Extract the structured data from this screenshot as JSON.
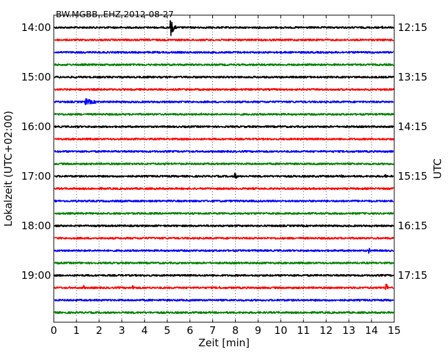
{
  "chart_data": {
    "type": "line",
    "title": "BW.MGBB..EHZ 2012-08-27",
    "xlabel": "Zeit  [min]",
    "ylabel_left": "Lokalzeit (UTC+02:00)",
    "ylabel_right": "UTC",
    "xlim": [
      0,
      15
    ],
    "x_ticks": [
      0,
      1,
      2,
      3,
      4,
      5,
      6,
      7,
      8,
      9,
      10,
      11,
      12,
      13,
      14,
      15
    ],
    "grid": "vertical dotted",
    "left_tick_labels": [
      "14:00",
      "15:00",
      "16:00",
      "17:00",
      "18:00",
      "19:00"
    ],
    "right_tick_labels": [
      "12:15",
      "13:15",
      "14:15",
      "15:15",
      "16:15",
      "17:15"
    ],
    "trace_colors": [
      "#000000",
      "#ff0000",
      "#0000ff",
      "#008000"
    ],
    "traces": [
      {
        "start": "14:00",
        "color": "#000000",
        "events": [
          {
            "t": 5.15,
            "amp": 13,
            "len": 0.25
          },
          {
            "t": 14.5,
            "amp": 3,
            "len": 0.2
          }
        ]
      },
      {
        "start": "14:15",
        "color": "#ff0000",
        "events": []
      },
      {
        "start": "14:30",
        "color": "#0000ff",
        "events": []
      },
      {
        "start": "14:45",
        "color": "#008000",
        "events": []
      },
      {
        "start": "15:00",
        "color": "#000000",
        "events": []
      },
      {
        "start": "15:15",
        "color": "#ff0000",
        "events": [
          {
            "t": 2.1,
            "amp": 2,
            "len": 0.3
          }
        ]
      },
      {
        "start": "15:30",
        "color": "#0000ff",
        "events": [
          {
            "t": 1.4,
            "amp": 5,
            "len": 0.9
          }
        ]
      },
      {
        "start": "15:45",
        "color": "#008000",
        "events": [
          {
            "t": 6.5,
            "amp": 2,
            "len": 0.2
          }
        ]
      },
      {
        "start": "16:00",
        "color": "#000000",
        "events": [
          {
            "t": 1.1,
            "amp": 2,
            "len": 0.3
          },
          {
            "t": 10.0,
            "amp": 2,
            "len": 0.2
          }
        ]
      },
      {
        "start": "16:15",
        "color": "#ff0000",
        "events": [
          {
            "t": 12.9,
            "amp": 2,
            "len": 0.2
          }
        ]
      },
      {
        "start": "16:30",
        "color": "#0000ff",
        "events": []
      },
      {
        "start": "16:45",
        "color": "#008000",
        "events": [
          {
            "t": 4.9,
            "amp": 2,
            "len": 0.3
          }
        ]
      },
      {
        "start": "17:00",
        "color": "#000000",
        "events": [
          {
            "t": 8.0,
            "amp": 5,
            "len": 0.15
          },
          {
            "t": 12.7,
            "amp": 2,
            "len": 0.15
          },
          {
            "t": 14.6,
            "amp": 3,
            "len": 0.15
          }
        ]
      },
      {
        "start": "17:15",
        "color": "#ff0000",
        "events": [
          {
            "t": 2.1,
            "amp": 2,
            "len": 0.2
          }
        ]
      },
      {
        "start": "17:30",
        "color": "#0000ff",
        "events": []
      },
      {
        "start": "17:45",
        "color": "#008000",
        "events": []
      },
      {
        "start": "18:00",
        "color": "#000000",
        "events": []
      },
      {
        "start": "18:15",
        "color": "#ff0000",
        "events": []
      },
      {
        "start": "18:30",
        "color": "#0000ff",
        "events": [
          {
            "t": 13.9,
            "amp": 4,
            "len": 0.1
          }
        ]
      },
      {
        "start": "18:45",
        "color": "#008000",
        "events": [
          {
            "t": 1.1,
            "amp": 2,
            "len": 0.2
          }
        ]
      },
      {
        "start": "19:00",
        "color": "#000000",
        "events": []
      },
      {
        "start": "19:15",
        "color": "#ff0000",
        "events": [
          {
            "t": 1.3,
            "amp": 5,
            "len": 0.1
          },
          {
            "t": 3.5,
            "amp": 5,
            "len": 0.1
          },
          {
            "t": 7.3,
            "amp": 2,
            "len": 0.2
          },
          {
            "t": 10.5,
            "amp": 2,
            "len": 0.2
          },
          {
            "t": 14.65,
            "amp": 9,
            "len": 0.1
          }
        ]
      },
      {
        "start": "19:30",
        "color": "#0000ff",
        "events": []
      },
      {
        "start": "19:45",
        "color": "#008000",
        "events": []
      }
    ]
  }
}
